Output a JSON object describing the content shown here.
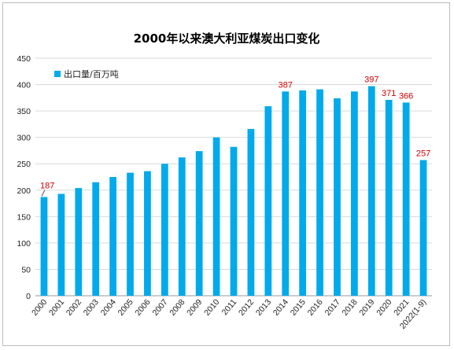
{
  "chart_data": {
    "type": "bar",
    "title": "2000年以来澳大利亚煤炭出口变化",
    "categories": [
      "2000",
      "2001",
      "2002",
      "2003",
      "2004",
      "2005",
      "2006",
      "2007",
      "2008",
      "2009",
      "2010",
      "2011",
      "2012",
      "2013",
      "2014",
      "2015",
      "2016",
      "2017",
      "2018",
      "2019",
      "2020",
      "2021",
      "2022(1-9)"
    ],
    "series": [
      {
        "name": "出口量/百万吨",
        "values": [
          187,
          193,
          204,
          215,
          225,
          233,
          236,
          250,
          262,
          274,
          300,
          282,
          316,
          359,
          387,
          389,
          391,
          374,
          387,
          397,
          371,
          366,
          257
        ]
      }
    ],
    "data_labels": [
      {
        "category": "2000",
        "text": "187"
      },
      {
        "category": "2014",
        "text": "387"
      },
      {
        "category": "2019",
        "text": "397"
      },
      {
        "category": "2020",
        "text": "371"
      },
      {
        "category": "2021",
        "text": "366"
      },
      {
        "category": "2022(1-9)",
        "text": "257"
      }
    ],
    "yticks": [
      "0",
      "50",
      "100",
      "150",
      "200",
      "250",
      "300",
      "350",
      "400",
      "450"
    ],
    "ylim": [
      0,
      450
    ],
    "grid": true,
    "legend_position": "top-left",
    "colors": {
      "bar": "#00aaeb",
      "label": "#d00000",
      "grid": "#d9d9d9"
    }
  }
}
